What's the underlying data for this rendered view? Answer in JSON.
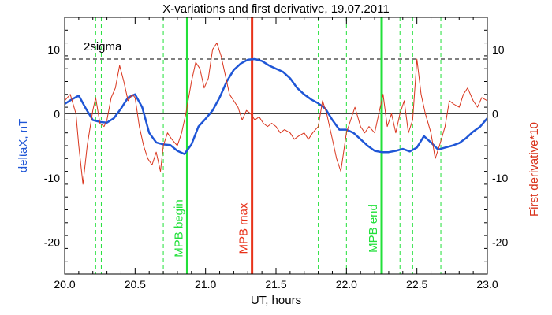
{
  "chart_data": {
    "type": "line",
    "title": "X-variations and first derivative, 19.07.2011",
    "xlabel": "UT, hours",
    "ylabel_left": "deltaX, nT",
    "ylabel_right": "First derivative*10",
    "xlim": [
      20.0,
      23.0
    ],
    "ylim": [
      -25,
      15
    ],
    "x_ticks": [
      "20.0",
      "20.5",
      "21.0",
      "21.5",
      "22.0",
      "22.5",
      "23.0"
    ],
    "y_ticks_left": [
      "10",
      "0",
      "-10",
      "-20"
    ],
    "y_ticks_right": [
      "10",
      "0",
      "-10",
      "-20"
    ],
    "sigma_label": "2sigma",
    "sigma_level": 8.5,
    "colors": {
      "deltaX": "#1f56d6",
      "derivative": "#d9341c",
      "mpb": "#22e03a",
      "mpb_max": "#e8321a"
    },
    "series": [
      {
        "key": "deltaX",
        "x": [
          20.0,
          20.05,
          20.1,
          20.15,
          20.2,
          20.25,
          20.3,
          20.35,
          20.4,
          20.45,
          20.5,
          20.55,
          20.6,
          20.65,
          20.7,
          20.75,
          20.8,
          20.85,
          20.9,
          20.95,
          21.0,
          21.05,
          21.1,
          21.15,
          21.2,
          21.25,
          21.3,
          21.35,
          21.4,
          21.45,
          21.5,
          21.55,
          21.6,
          21.65,
          21.7,
          21.75,
          21.8,
          21.85,
          21.9,
          21.95,
          22.0,
          22.05,
          22.1,
          22.15,
          22.2,
          22.25,
          22.3,
          22.35,
          22.4,
          22.45,
          22.5,
          22.55,
          22.6,
          22.65,
          22.7,
          22.75,
          22.8,
          22.85,
          22.9,
          22.95,
          23.0
        ],
        "values": [
          1.5,
          2.2,
          2.8,
          0.8,
          -1.0,
          -1.3,
          -1.4,
          -0.7,
          0.8,
          2.5,
          3.0,
          1.0,
          -3.0,
          -4.5,
          -4.8,
          -4.9,
          -5.8,
          -6.3,
          -4.8,
          -2.0,
          -0.8,
          0.5,
          2.5,
          5.0,
          6.8,
          7.8,
          8.4,
          8.5,
          8.2,
          7.5,
          7.0,
          6.5,
          5.5,
          4.0,
          3.0,
          2.2,
          1.6,
          0.8,
          -1.0,
          -2.5,
          -2.5,
          -3.0,
          -4.0,
          -5.0,
          -5.8,
          -6.0,
          -6.0,
          -5.8,
          -5.5,
          -5.9,
          -5.3,
          -3.5,
          -4.5,
          -5.6,
          -5.3,
          -5.0,
          -4.6,
          -3.8,
          -2.8,
          -2.0,
          -0.7
        ]
      },
      {
        "key": "derivative",
        "x": [
          20.0,
          20.04,
          20.08,
          20.1,
          20.13,
          20.16,
          20.2,
          20.22,
          20.25,
          20.28,
          20.3,
          20.33,
          20.36,
          20.39,
          20.42,
          20.45,
          20.48,
          20.5,
          20.53,
          20.56,
          20.59,
          20.62,
          20.65,
          20.68,
          20.7,
          20.73,
          20.76,
          20.8,
          20.83,
          20.86,
          20.9,
          20.93,
          20.96,
          20.99,
          21.02,
          21.05,
          21.08,
          21.11,
          21.14,
          21.17,
          21.2,
          21.23,
          21.26,
          21.29,
          21.32,
          21.35,
          21.38,
          21.41,
          21.44,
          21.47,
          21.5,
          21.53,
          21.56,
          21.6,
          21.63,
          21.66,
          21.7,
          21.73,
          21.76,
          21.8,
          21.83,
          21.86,
          21.9,
          21.93,
          21.96,
          22.0,
          22.03,
          22.06,
          22.1,
          22.13,
          22.16,
          22.2,
          22.23,
          22.26,
          22.29,
          22.32,
          22.35,
          22.38,
          22.41,
          22.44,
          22.47,
          22.5,
          22.53,
          22.56,
          22.6,
          22.63,
          22.66,
          22.7,
          22.73,
          22.76,
          22.8,
          22.83,
          22.86,
          22.9,
          22.93,
          22.96,
          23.0
        ],
        "values": [
          2.0,
          3.0,
          0.0,
          -5.0,
          -11.0,
          -5.0,
          0.5,
          2.5,
          -1.5,
          -2.0,
          -1.0,
          2.5,
          4.0,
          7.5,
          5.0,
          2.0,
          3.0,
          2.5,
          -2.0,
          -5.0,
          -7.0,
          -8.0,
          -6.0,
          -9.0,
          -5.0,
          -3.0,
          -4.0,
          -5.0,
          -3.0,
          0.0,
          5.0,
          8.0,
          7.0,
          4.0,
          5.5,
          10.0,
          11.0,
          9.0,
          6.0,
          3.0,
          2.0,
          1.0,
          -1.0,
          0.5,
          0.0,
          -1.0,
          -0.5,
          -1.5,
          -2.0,
          -1.5,
          -2.0,
          -3.0,
          -2.5,
          -3.0,
          -4.0,
          -3.5,
          -3.0,
          -4.0,
          -3.0,
          -2.0,
          2.0,
          0.0,
          -4.0,
          -7.0,
          -9.0,
          -3.0,
          -1.0,
          1.0,
          -2.0,
          -3.0,
          -2.0,
          -3.0,
          0.0,
          3.0,
          -2.0,
          0.0,
          -3.0,
          0.0,
          2.0,
          -3.0,
          -1.0,
          8.5,
          3.0,
          0.0,
          -3.0,
          -7.0,
          -5.0,
          -2.0,
          2.0,
          1.5,
          1.0,
          3.0,
          4.0,
          2.0,
          1.0,
          2.5,
          2.0
        ]
      }
    ],
    "markers": [
      {
        "x": 20.87,
        "label": "MPB begin",
        "role": "mpb"
      },
      {
        "x": 21.33,
        "label": "MPB max",
        "role": "mpb_max"
      },
      {
        "x": 22.25,
        "label": "MPB end",
        "role": "mpb"
      }
    ],
    "dashed_lines_x": [
      20.22,
      20.26,
      20.7,
      20.87,
      21.8,
      22.0,
      22.38,
      22.47,
      22.67
    ]
  }
}
